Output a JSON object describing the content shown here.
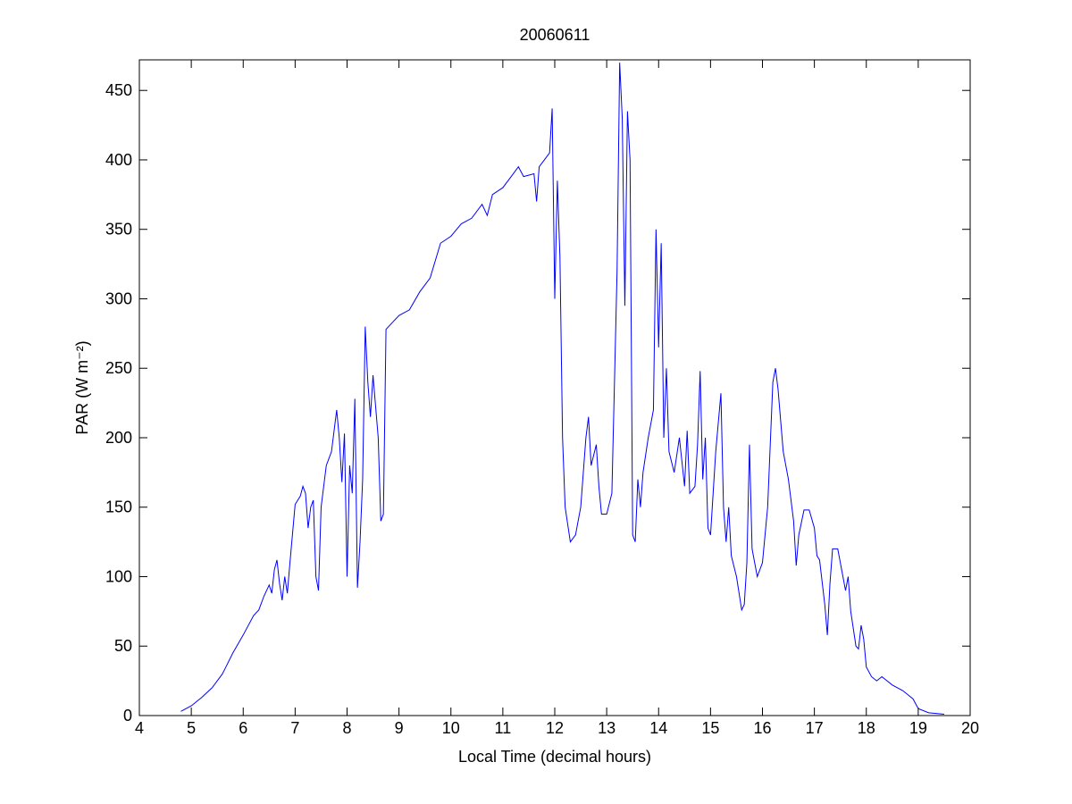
{
  "chart_data": {
    "type": "line",
    "title": "20060611",
    "xlabel": "Local Time (decimal hours)",
    "ylabel": "PAR (W m⁻²)",
    "color": "#0000ff",
    "xlim": [
      4,
      20
    ],
    "xticks": [
      4,
      5,
      6,
      7,
      8,
      9,
      10,
      11,
      12,
      13,
      14,
      15,
      16,
      17,
      18,
      19,
      20
    ],
    "ylim": [
      0,
      472
    ],
    "yticks": [
      0,
      50,
      100,
      150,
      200,
      250,
      300,
      350,
      400,
      450
    ],
    "x": [
      4.8,
      5.0,
      5.2,
      5.4,
      5.6,
      5.8,
      6.0,
      6.2,
      6.3,
      6.4,
      6.5,
      6.55,
      6.6,
      6.65,
      6.7,
      6.75,
      6.8,
      6.85,
      6.9,
      7.0,
      7.1,
      7.15,
      7.2,
      7.25,
      7.3,
      7.35,
      7.4,
      7.45,
      7.5,
      7.6,
      7.7,
      7.8,
      7.85,
      7.9,
      7.95,
      8.0,
      8.05,
      8.1,
      8.15,
      8.2,
      8.25,
      8.3,
      8.35,
      8.4,
      8.45,
      8.5,
      8.6,
      8.65,
      8.7,
      8.75,
      8.85,
      9.0,
      9.2,
      9.4,
      9.6,
      9.8,
      10.0,
      10.2,
      10.4,
      10.6,
      10.7,
      10.8,
      11.0,
      11.2,
      11.3,
      11.4,
      11.6,
      11.65,
      11.7,
      11.8,
      11.9,
      11.95,
      12.0,
      12.05,
      12.1,
      12.15,
      12.2,
      12.3,
      12.4,
      12.5,
      12.6,
      12.65,
      12.7,
      12.8,
      12.85,
      12.9,
      13.0,
      13.1,
      13.2,
      13.25,
      13.3,
      13.35,
      13.4,
      13.45,
      13.5,
      13.55,
      13.6,
      13.65,
      13.7,
      13.8,
      13.9,
      13.95,
      14.0,
      14.05,
      14.1,
      14.15,
      14.2,
      14.3,
      14.4,
      14.5,
      14.55,
      14.6,
      14.7,
      14.75,
      14.8,
      14.85,
      14.9,
      14.95,
      15.0,
      15.1,
      15.2,
      15.25,
      15.3,
      15.35,
      15.4,
      15.5,
      15.6,
      15.65,
      15.7,
      15.75,
      15.8,
      15.9,
      16.0,
      16.1,
      16.2,
      16.25,
      16.3,
      16.4,
      16.5,
      16.6,
      16.65,
      16.7,
      16.8,
      16.9,
      17.0,
      17.05,
      17.1,
      17.2,
      17.25,
      17.3,
      17.35,
      17.45,
      17.5,
      17.6,
      17.65,
      17.7,
      17.8,
      17.85,
      17.9,
      17.95,
      18.0,
      18.1,
      18.2,
      18.3,
      18.5,
      18.7,
      18.9,
      19.0,
      19.2,
      19.5
    ],
    "values": [
      3,
      7,
      13,
      20,
      30,
      45,
      58,
      72,
      76,
      86,
      94,
      88,
      105,
      112,
      95,
      83,
      100,
      88,
      110,
      152,
      158,
      165,
      160,
      135,
      150,
      155,
      100,
      90,
      150,
      180,
      190,
      220,
      200,
      168,
      203,
      100,
      180,
      160,
      228,
      92,
      125,
      170,
      280,
      240,
      215,
      245,
      200,
      140,
      145,
      278,
      282,
      288,
      292,
      305,
      315,
      340,
      345,
      354,
      358,
      368,
      360,
      375,
      380,
      390,
      395,
      388,
      390,
      370,
      395,
      400,
      405,
      437,
      300,
      385,
      330,
      200,
      150,
      125,
      130,
      150,
      200,
      215,
      180,
      195,
      165,
      145,
      145,
      160,
      320,
      470,
      430,
      295,
      435,
      400,
      130,
      125,
      170,
      150,
      175,
      200,
      220,
      350,
      265,
      340,
      200,
      250,
      190,
      175,
      200,
      165,
      205,
      160,
      165,
      195,
      248,
      170,
      200,
      135,
      130,
      190,
      232,
      150,
      125,
      150,
      115,
      100,
      76,
      80,
      110,
      195,
      120,
      100,
      110,
      150,
      240,
      250,
      235,
      190,
      170,
      140,
      108,
      130,
      148,
      148,
      135,
      115,
      112,
      80,
      58,
      95,
      120,
      120,
      110,
      90,
      100,
      75,
      50,
      48,
      65,
      55,
      35,
      28,
      25,
      28,
      22,
      18,
      12,
      5,
      2,
      1
    ]
  }
}
